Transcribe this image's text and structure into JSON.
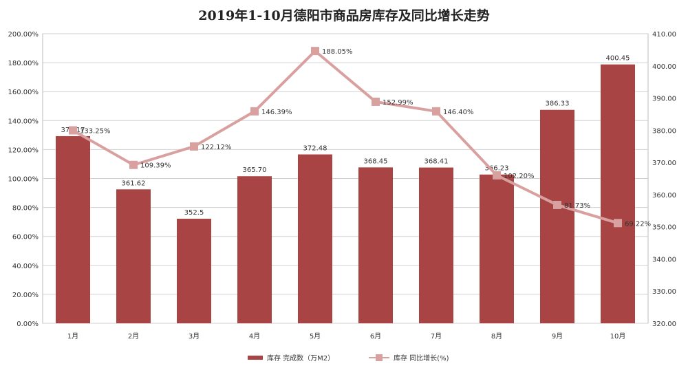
{
  "chart_data": {
    "type": "bar+line",
    "title": "2019年1-10月德阳市商品房库存及同比增长走势",
    "categories": [
      "1月",
      "2月",
      "3月",
      "4月",
      "5月",
      "6月",
      "7月",
      "8月",
      "9月",
      "10月"
    ],
    "series": [
      {
        "name": "库存 完成数（万M2）",
        "type": "bar",
        "axis": "right",
        "color": "#a94444",
        "values": [
          378.17,
          361.62,
          352.5,
          365.7,
          372.48,
          368.45,
          368.41,
          366.23,
          386.33,
          400.45
        ],
        "labels": [
          "378.17",
          "361.62",
          "352.5",
          "365.70",
          "372.48",
          "368.45",
          "368.41",
          "366.23",
          "386.33",
          "400.45"
        ]
      },
      {
        "name": "库存 同比增长(%)",
        "type": "line",
        "axis": "left",
        "color": "#d9a0a0",
        "values": [
          133.25,
          109.39,
          122.12,
          146.39,
          188.05,
          152.99,
          146.4,
          102.2,
          81.73,
          69.22
        ],
        "labels": [
          "133.25%",
          "109.39%",
          "122.12%",
          "146.39%",
          "188.05%",
          "152.99%",
          "146.40%",
          "102.20%",
          "81.73%",
          "69.22%"
        ]
      }
    ],
    "left_axis": {
      "ylim": [
        0,
        200
      ],
      "ticks": [
        "0.00%",
        "20.00%",
        "40.00%",
        "60.00%",
        "80.00%",
        "100.00%",
        "120.00%",
        "140.00%",
        "160.00%",
        "180.00%",
        "200.00%"
      ]
    },
    "right_axis": {
      "ylim": [
        320,
        410
      ],
      "ticks": [
        "320.00",
        "330.00",
        "340.00",
        "350.00",
        "360.00",
        "370.00",
        "380.00",
        "390.00",
        "400.00",
        "410.00"
      ]
    },
    "grid": true,
    "legend": "bottom"
  }
}
